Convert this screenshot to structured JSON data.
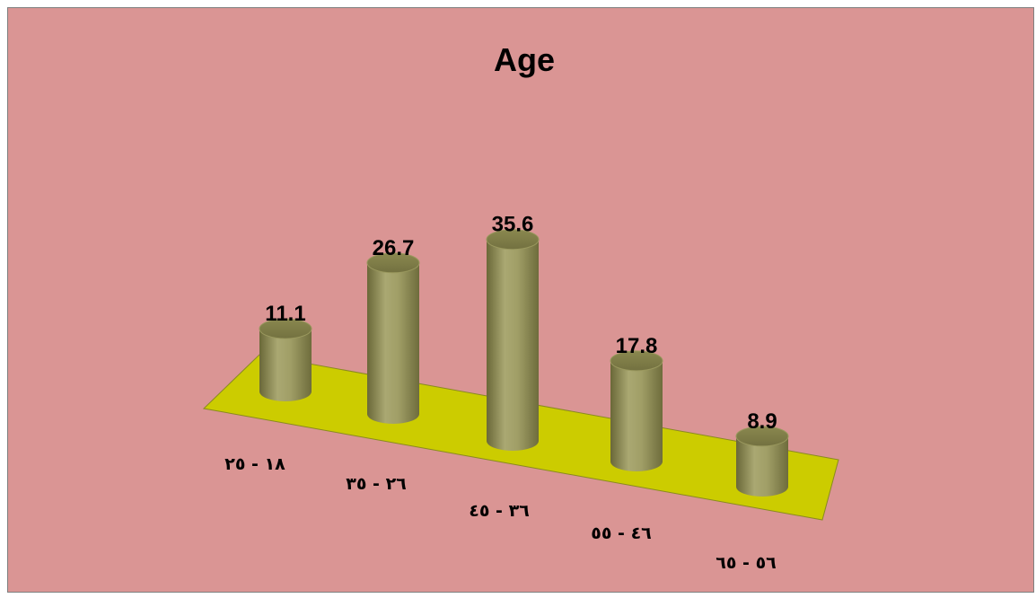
{
  "chart_data": {
    "type": "bar",
    "title": "Age",
    "categories": [
      "١٨ - ٢٥",
      "٢٦ - ٣٥",
      "٣٦ - ٤٥",
      "٤٦ - ٥٥",
      "٥٦ - ٦٥"
    ],
    "values": [
      11.1,
      26.7,
      35.6,
      17.8,
      8.9
    ],
    "xlabel": "",
    "ylabel": "",
    "ylim": [
      0,
      40
    ],
    "grid": false,
    "legend": "none",
    "bar_shape": "cylinder-3d"
  },
  "colors": {
    "background": "#da9594",
    "floor": "#cccc00",
    "bar_body": "#9c9a62",
    "bar_top": "#807e4a"
  }
}
